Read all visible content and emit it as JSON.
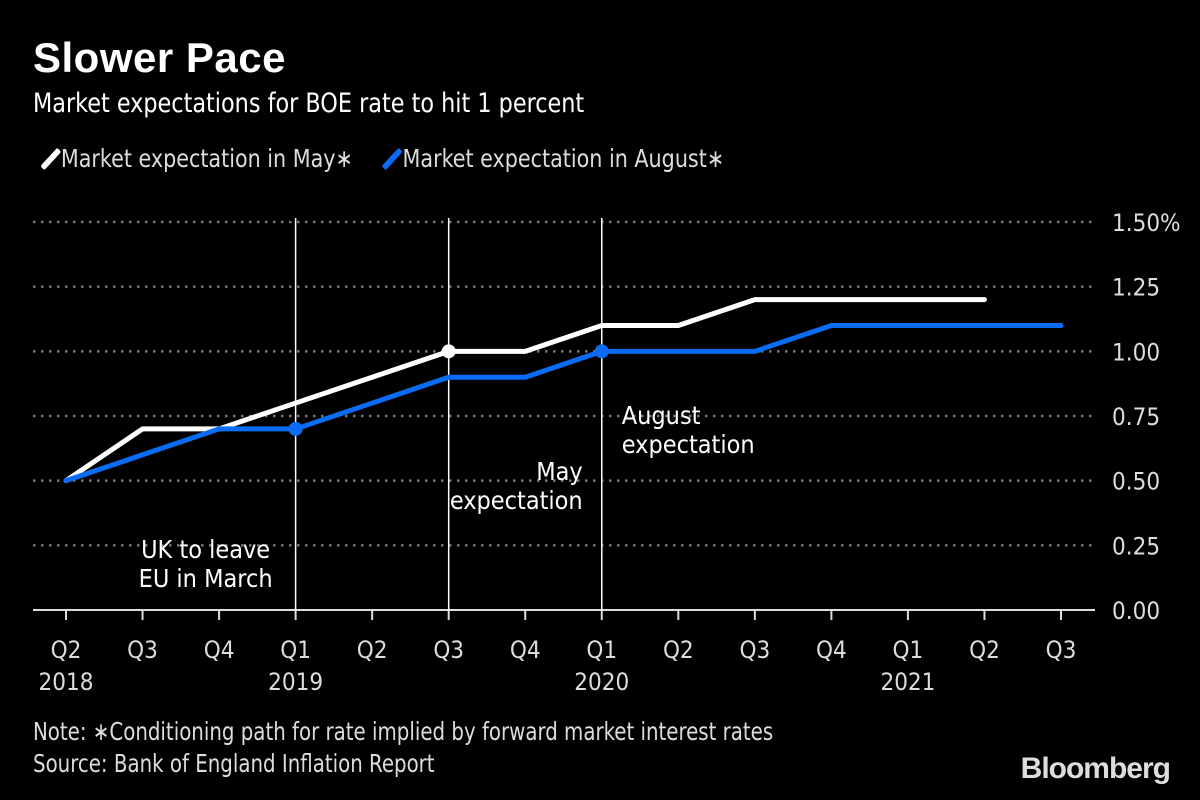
{
  "chart_data": {
    "type": "line",
    "title": "Slower Pace",
    "subtitle": "Market expectations for BOE rate to hit 1 percent",
    "categories": [
      "Q2 2018",
      "Q3 2018",
      "Q4 2018",
      "Q1 2019",
      "Q2 2019",
      "Q3 2019",
      "Q4 2019",
      "Q1 2020",
      "Q2 2020",
      "Q3 2020",
      "Q4 2020",
      "Q1 2021",
      "Q2 2021",
      "Q3 2021"
    ],
    "x_tick_quarters": [
      "Q2",
      "Q3",
      "Q4",
      "Q1",
      "Q2",
      "Q3",
      "Q4",
      "Q1",
      "Q2",
      "Q3",
      "Q4",
      "Q1",
      "Q2",
      "Q3"
    ],
    "x_tick_years": [
      "2018",
      "",
      "",
      "2019",
      "",
      "",
      "",
      "2020",
      "",
      "",
      "",
      "2021",
      "",
      ""
    ],
    "series": [
      {
        "name": "Market expectation in May*",
        "color": "#ffffff",
        "values": [
          0.5,
          0.7,
          0.7,
          0.8,
          0.9,
          1.0,
          1.0,
          1.1,
          1.1,
          1.2,
          1.2,
          1.2,
          1.2,
          null
        ],
        "marker_at": [
          "Q3 2019"
        ]
      },
      {
        "name": "Market expectation in August*",
        "color": "#0a6cf5",
        "values": [
          0.5,
          0.6,
          0.7,
          0.7,
          0.8,
          0.9,
          0.9,
          1.0,
          1.0,
          1.0,
          1.1,
          1.1,
          1.1,
          1.1
        ],
        "marker_at": [
          "Q1 2019",
          "Q1 2020"
        ]
      }
    ],
    "ylim": [
      0,
      1.5
    ],
    "y_ticks": [
      "0.00",
      "0.25",
      "0.50",
      "0.75",
      "1.00",
      "1.25",
      "1.50%"
    ],
    "y_tick_values": [
      0,
      0.25,
      0.5,
      0.75,
      1.0,
      1.25,
      1.5
    ],
    "y_axis_side": "right",
    "grid": "horizontal dotted",
    "legend_placement": "top-left",
    "annotations": [
      {
        "text_lines": [
          "UK to leave",
          "EU in March"
        ],
        "at": "Q1 2019",
        "vertical_line": true
      },
      {
        "text_lines": [
          "May",
          "expectation"
        ],
        "at": "Q3 2019",
        "vertical_line": true
      },
      {
        "text_lines": [
          "August",
          "expectation"
        ],
        "at": "Q1 2020",
        "vertical_line": true
      }
    ]
  },
  "legend": {
    "may": "Market expectation in May∗",
    "august": "Market expectation in August∗"
  },
  "footer": {
    "note": "Note: ∗Conditioning path for rate implied by forward market interest rates",
    "source": "Source: Bank of England Inflation Report",
    "logo": "Bloomberg"
  }
}
